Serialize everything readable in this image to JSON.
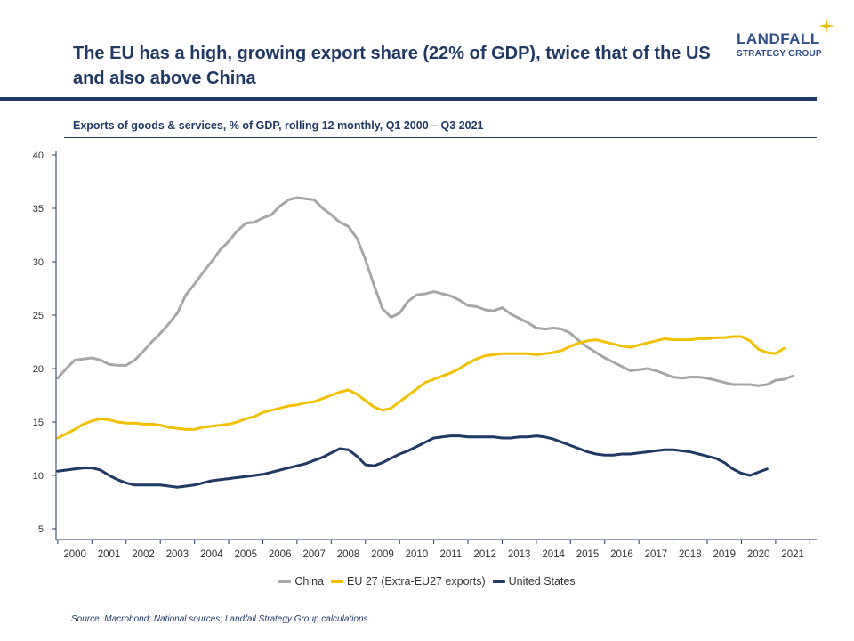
{
  "page": {
    "headline": "The EU has a high, growing export share (22% of GDP), twice that of the US and also above China",
    "logo_name": "LANDFALL",
    "logo_sub": "STRATEGY GROUP",
    "source": "Source: Macrobond;  National sources; Landfall Strategy Group calculations."
  },
  "chart_data": {
    "type": "line",
    "title": "Exports of goods & services, % of GDP, rolling 12 monthly, Q1 2000 – Q3 2021",
    "xlabel": "",
    "ylabel": "",
    "x_start": 2000.0,
    "x_step": 0.25,
    "xlim": [
      1999.95,
      2022.2
    ],
    "ylim": [
      4,
      40
    ],
    "y_ticks": [
      5,
      10,
      15,
      20,
      25,
      30,
      35,
      40
    ],
    "x_tick_labels": [
      "2000",
      "2001",
      "2002",
      "2003",
      "2004",
      "2005",
      "2006",
      "2007",
      "2008",
      "2009",
      "2010",
      "2011",
      "2012",
      "2013",
      "2014",
      "2015",
      "2016",
      "2017",
      "2018",
      "2019",
      "2020",
      "2021"
    ],
    "legend_position": "bottom",
    "series": [
      {
        "name": "China",
        "color": "#a6a6a6",
        "values": [
          19.1,
          20.0,
          20.8,
          20.9,
          21.0,
          20.8,
          20.4,
          20.3,
          20.3,
          20.8,
          21.6,
          22.5,
          23.3,
          24.2,
          25.2,
          26.9,
          27.9,
          29.0,
          30.0,
          31.1,
          31.9,
          32.9,
          33.6,
          33.7,
          34.1,
          34.4,
          35.2,
          35.8,
          36.0,
          35.9,
          35.8,
          35.0,
          34.4,
          33.7,
          33.3,
          32.2,
          30.2,
          27.8,
          25.6,
          24.8,
          25.2,
          26.3,
          26.9,
          27.0,
          27.2,
          27.0,
          26.8,
          26.4,
          25.9,
          25.8,
          25.5,
          25.4,
          25.7,
          25.1,
          24.7,
          24.3,
          23.8,
          23.7,
          23.8,
          23.7,
          23.3,
          22.6,
          22.0,
          21.5,
          21.0,
          20.6,
          20.2,
          19.8,
          19.9,
          20.0,
          19.8,
          19.5,
          19.2,
          19.1,
          19.2,
          19.2,
          19.1,
          18.9,
          18.7,
          18.5,
          18.5,
          18.5,
          18.4,
          18.5,
          18.9,
          19.0,
          19.3
        ]
      },
      {
        "name": "EU 27 (Extra-EU27 exports)",
        "color": "#f2c000",
        "values": [
          13.5,
          13.9,
          14.3,
          14.8,
          15.1,
          15.3,
          15.2,
          15.0,
          14.9,
          14.9,
          14.8,
          14.8,
          14.7,
          14.5,
          14.4,
          14.3,
          14.3,
          14.5,
          14.6,
          14.7,
          14.8,
          15.0,
          15.3,
          15.5,
          15.9,
          16.1,
          16.3,
          16.5,
          16.6,
          16.8,
          16.9,
          17.2,
          17.5,
          17.8,
          18.0,
          17.6,
          17.0,
          16.4,
          16.1,
          16.3,
          16.9,
          17.5,
          18.1,
          18.7,
          19.0,
          19.3,
          19.6,
          20.0,
          20.5,
          20.9,
          21.2,
          21.3,
          21.4,
          21.4,
          21.4,
          21.4,
          21.3,
          21.4,
          21.5,
          21.7,
          22.1,
          22.4,
          22.6,
          22.7,
          22.5,
          22.3,
          22.1,
          22.0,
          22.2,
          22.4,
          22.6,
          22.8,
          22.7,
          22.7,
          22.7,
          22.8,
          22.8,
          22.9,
          22.9,
          23.0,
          23.0,
          22.6,
          21.8,
          21.5,
          21.4,
          21.9
        ]
      },
      {
        "name": "United States",
        "color": "#1f3864",
        "values": [
          10.4,
          10.5,
          10.6,
          10.7,
          10.7,
          10.5,
          10.0,
          9.6,
          9.3,
          9.1,
          9.1,
          9.1,
          9.1,
          9.0,
          8.9,
          9.0,
          9.1,
          9.3,
          9.5,
          9.6,
          9.7,
          9.8,
          9.9,
          10.0,
          10.1,
          10.3,
          10.5,
          10.7,
          10.9,
          11.1,
          11.4,
          11.7,
          12.1,
          12.5,
          12.4,
          11.8,
          11.0,
          10.9,
          11.2,
          11.6,
          12.0,
          12.3,
          12.7,
          13.1,
          13.5,
          13.6,
          13.7,
          13.7,
          13.6,
          13.6,
          13.6,
          13.6,
          13.5,
          13.5,
          13.6,
          13.6,
          13.7,
          13.6,
          13.4,
          13.1,
          12.8,
          12.5,
          12.2,
          12.0,
          11.9,
          11.9,
          12.0,
          12.0,
          12.1,
          12.2,
          12.3,
          12.4,
          12.4,
          12.3,
          12.2,
          12.0,
          11.8,
          11.6,
          11.2,
          10.6,
          10.2,
          10.0,
          10.3,
          10.6
        ]
      }
    ]
  }
}
